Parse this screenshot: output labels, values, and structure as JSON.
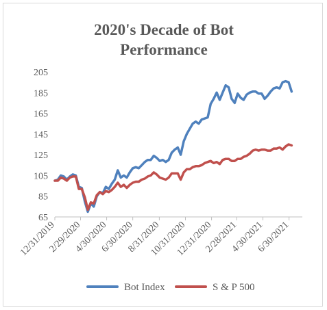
{
  "chart_data": {
    "type": "line",
    "title": [
      "2020's Decade of Bot",
      "Performance"
    ],
    "xlabel": "",
    "ylabel": "",
    "ylim": [
      65,
      205
    ],
    "yticks": [
      65,
      85,
      105,
      125,
      145,
      165,
      185,
      205
    ],
    "xlim": [
      "12/31/2019",
      "7/31/2021"
    ],
    "xticks": [
      "12/31/2019",
      "2/29/2020",
      "4/30/2020",
      "6/30/2020",
      "8/31/2020",
      "10/31/2020",
      "12/31/2020",
      "2/28/2021",
      "4/30/2021",
      "6/30/2021"
    ],
    "grid": false,
    "legend_position": "bottom",
    "series": [
      {
        "name": "Bot Index",
        "color": "#4f81bd",
        "points": [
          [
            "12/31/2019",
            100
          ],
          [
            "1/7/2020",
            101
          ],
          [
            "1/14/2020",
            105
          ],
          [
            "1/21/2020",
            104
          ],
          [
            "1/28/2020",
            101
          ],
          [
            "2/4/2020",
            104
          ],
          [
            "2/11/2020",
            106
          ],
          [
            "2/18/2020",
            105
          ],
          [
            "2/25/2020",
            94
          ],
          [
            "3/3/2020",
            93
          ],
          [
            "3/10/2020",
            80
          ],
          [
            "3/17/2020",
            70
          ],
          [
            "3/24/2020",
            78
          ],
          [
            "3/31/2020",
            75
          ],
          [
            "4/7/2020",
            85
          ],
          [
            "4/14/2020",
            89
          ],
          [
            "4/21/2020",
            88
          ],
          [
            "4/28/2020",
            94
          ],
          [
            "5/5/2020",
            92
          ],
          [
            "5/12/2020",
            97
          ],
          [
            "5/19/2020",
            101
          ],
          [
            "5/26/2020",
            110
          ],
          [
            "6/2/2020",
            103
          ],
          [
            "6/9/2020",
            105
          ],
          [
            "6/16/2020",
            103
          ],
          [
            "6/23/2020",
            108
          ],
          [
            "6/30/2020",
            112
          ],
          [
            "7/7/2020",
            113
          ],
          [
            "7/14/2020",
            112
          ],
          [
            "7/21/2020",
            115
          ],
          [
            "7/28/2020",
            118
          ],
          [
            "8/4/2020",
            120
          ],
          [
            "8/11/2020",
            120
          ],
          [
            "8/18/2020",
            124
          ],
          [
            "8/25/2020",
            122
          ],
          [
            "9/1/2020",
            119
          ],
          [
            "9/8/2020",
            120
          ],
          [
            "9/15/2020",
            118
          ],
          [
            "9/22/2020",
            120
          ],
          [
            "9/29/2020",
            127
          ],
          [
            "10/6/2020",
            130
          ],
          [
            "10/13/2020",
            132
          ],
          [
            "10/20/2020",
            125
          ],
          [
            "10/27/2020",
            138
          ],
          [
            "11/3/2020",
            145
          ],
          [
            "11/10/2020",
            150
          ],
          [
            "11/17/2020",
            155
          ],
          [
            "11/24/2020",
            157
          ],
          [
            "12/1/2020",
            155
          ],
          [
            "12/8/2020",
            159
          ],
          [
            "12/15/2020",
            160
          ],
          [
            "12/22/2020",
            161
          ],
          [
            "12/29/2020",
            174
          ],
          [
            "1/5/2021",
            179
          ],
          [
            "1/12/2021",
            185
          ],
          [
            "1/19/2021",
            178
          ],
          [
            "1/26/2021",
            185
          ],
          [
            "2/2/2021",
            192
          ],
          [
            "2/9/2021",
            190
          ],
          [
            "2/16/2021",
            179
          ],
          [
            "2/23/2021",
            175
          ],
          [
            "3/2/2021",
            184
          ],
          [
            "3/9/2021",
            180
          ],
          [
            "3/16/2021",
            178
          ],
          [
            "3/23/2021",
            183
          ],
          [
            "3/30/2021",
            185
          ],
          [
            "4/6/2021",
            186
          ],
          [
            "4/13/2021",
            186
          ],
          [
            "4/20/2021",
            184
          ],
          [
            "4/27/2021",
            184
          ],
          [
            "5/4/2021",
            179
          ],
          [
            "5/11/2021",
            182
          ],
          [
            "5/18/2021",
            186
          ],
          [
            "5/25/2021",
            189
          ],
          [
            "6/1/2021",
            190
          ],
          [
            "6/8/2021",
            189
          ],
          [
            "6/15/2021",
            195
          ],
          [
            "6/22/2021",
            196
          ],
          [
            "6/29/2021",
            195
          ],
          [
            "7/6/2021",
            186
          ]
        ]
      },
      {
        "name": "S & P 500",
        "color": "#c0504d",
        "points": [
          [
            "12/31/2019",
            100
          ],
          [
            "1/7/2020",
            100
          ],
          [
            "1/14/2020",
            103
          ],
          [
            "1/21/2020",
            102
          ],
          [
            "1/28/2020",
            100
          ],
          [
            "2/4/2020",
            103
          ],
          [
            "2/11/2020",
            104
          ],
          [
            "2/18/2020",
            104
          ],
          [
            "2/25/2020",
            92
          ],
          [
            "3/3/2020",
            92
          ],
          [
            "3/10/2020",
            84
          ],
          [
            "3/17/2020",
            72
          ],
          [
            "3/24/2020",
            79
          ],
          [
            "3/31/2020",
            78
          ],
          [
            "4/7/2020",
            86
          ],
          [
            "4/14/2020",
            89
          ],
          [
            "4/21/2020",
            87
          ],
          [
            "4/28/2020",
            90
          ],
          [
            "5/5/2020",
            89
          ],
          [
            "5/12/2020",
            91
          ],
          [
            "5/19/2020",
            94
          ],
          [
            "5/26/2020",
            98
          ],
          [
            "6/2/2020",
            94
          ],
          [
            "6/9/2020",
            96
          ],
          [
            "6/16/2020",
            93
          ],
          [
            "6/23/2020",
            96
          ],
          [
            "6/30/2020",
            98
          ],
          [
            "7/7/2020",
            99
          ],
          [
            "7/14/2020",
            99
          ],
          [
            "7/21/2020",
            101
          ],
          [
            "7/28/2020",
            102
          ],
          [
            "8/4/2020",
            104
          ],
          [
            "8/11/2020",
            105
          ],
          [
            "8/18/2020",
            108
          ],
          [
            "8/25/2020",
            106
          ],
          [
            "9/1/2020",
            103
          ],
          [
            "9/8/2020",
            102
          ],
          [
            "9/15/2020",
            101
          ],
          [
            "9/22/2020",
            103
          ],
          [
            "9/29/2020",
            107
          ],
          [
            "10/6/2020",
            107
          ],
          [
            "10/13/2020",
            107
          ],
          [
            "10/20/2020",
            101
          ],
          [
            "10/27/2020",
            108
          ],
          [
            "11/3/2020",
            111
          ],
          [
            "11/10/2020",
            111
          ],
          [
            "11/17/2020",
            113
          ],
          [
            "11/24/2020",
            114
          ],
          [
            "12/1/2020",
            114
          ],
          [
            "12/8/2020",
            115
          ],
          [
            "12/15/2020",
            117
          ],
          [
            "12/22/2020",
            118
          ],
          [
            "12/29/2020",
            119
          ],
          [
            "1/5/2021",
            117
          ],
          [
            "1/12/2021",
            118
          ],
          [
            "1/19/2021",
            116
          ],
          [
            "1/26/2021",
            120
          ],
          [
            "2/2/2021",
            121
          ],
          [
            "2/9/2021",
            121
          ],
          [
            "2/16/2021",
            119
          ],
          [
            "2/23/2021",
            119
          ],
          [
            "3/2/2021",
            121
          ],
          [
            "3/9/2021",
            121
          ],
          [
            "3/16/2021",
            123
          ],
          [
            "3/23/2021",
            124
          ],
          [
            "3/30/2021",
            126
          ],
          [
            "4/6/2021",
            129
          ],
          [
            "4/13/2021",
            130
          ],
          [
            "4/20/2021",
            129
          ],
          [
            "4/27/2021",
            130
          ],
          [
            "5/4/2021",
            130
          ],
          [
            "5/11/2021",
            129
          ],
          [
            "5/18/2021",
            129
          ],
          [
            "5/25/2021",
            131
          ],
          [
            "6/1/2021",
            131
          ],
          [
            "6/8/2021",
            132
          ],
          [
            "6/15/2021",
            130
          ],
          [
            "6/22/2021",
            133
          ],
          [
            "6/29/2021",
            135
          ],
          [
            "7/6/2021",
            134
          ]
        ]
      }
    ]
  }
}
